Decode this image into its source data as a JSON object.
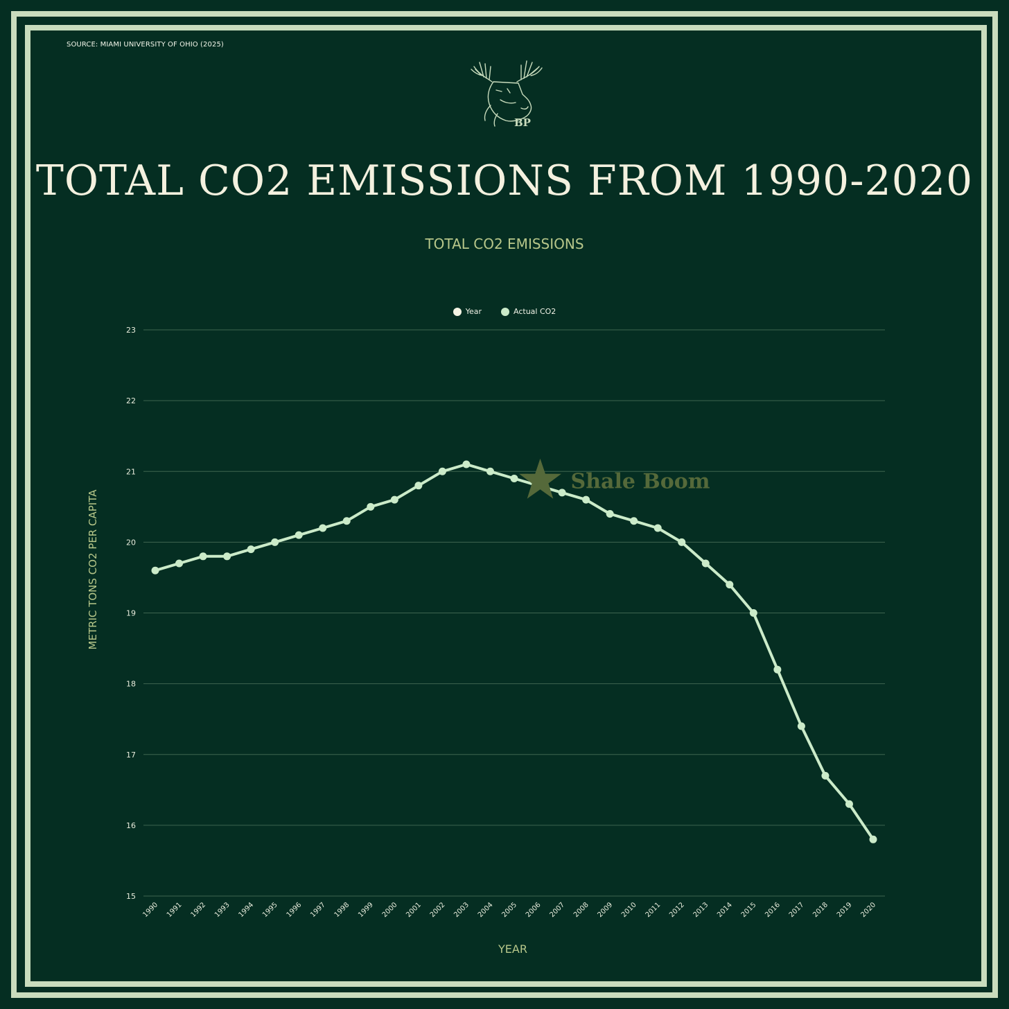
{
  "source": "SOURCE: MIAMI UNIVERSITY OF OHIO (2025)",
  "logo_text": "BP",
  "title": "TOTAL CO2 EMISSIONS FROM 1990-2020",
  "colors": {
    "background": "#052e22",
    "frame": "#c9dcbd",
    "line": "#cbebc9",
    "accent_label": "#b7c78a",
    "annotation": "#55693a"
  },
  "chart_data": {
    "type": "line",
    "title": "TOTAL CO2 EMISSIONS",
    "xlabel": "YEAR",
    "ylabel": "METRIC TONS CO2 PER CAPITA",
    "ylim": [
      15,
      23
    ],
    "yticks": [
      15,
      16,
      17,
      18,
      19,
      20,
      21,
      22,
      23
    ],
    "grid": true,
    "legend_position": "top-center",
    "legend": [
      {
        "label": "Year",
        "color": "#f4f4e4"
      },
      {
        "label": "Actual CO2",
        "color": "#cbebc9"
      }
    ],
    "categories": [
      "1990",
      "1991",
      "1992",
      "1993",
      "1994",
      "1995",
      "1996",
      "1997",
      "1998",
      "1999",
      "2000",
      "2001",
      "2002",
      "2003",
      "2004",
      "2005",
      "2006",
      "2007",
      "2008",
      "2009",
      "2010",
      "2011",
      "2012",
      "2013",
      "2014",
      "2015",
      "2016",
      "2017",
      "2018",
      "2019",
      "2020"
    ],
    "series": [
      {
        "name": "Actual CO2",
        "values": [
          19.6,
          19.7,
          19.8,
          19.8,
          19.9,
          20.0,
          20.1,
          20.2,
          20.3,
          20.5,
          20.6,
          20.8,
          21.0,
          21.1,
          21.0,
          20.9,
          20.8,
          20.7,
          20.6,
          20.4,
          20.3,
          20.2,
          20.0,
          19.7,
          19.4,
          19.0,
          18.2,
          17.4,
          16.7,
          16.3,
          15.8
        ]
      }
    ],
    "annotations": [
      {
        "text": "Shale Boom",
        "x": "2006",
        "y": 20.8,
        "marker": "star"
      }
    ]
  }
}
